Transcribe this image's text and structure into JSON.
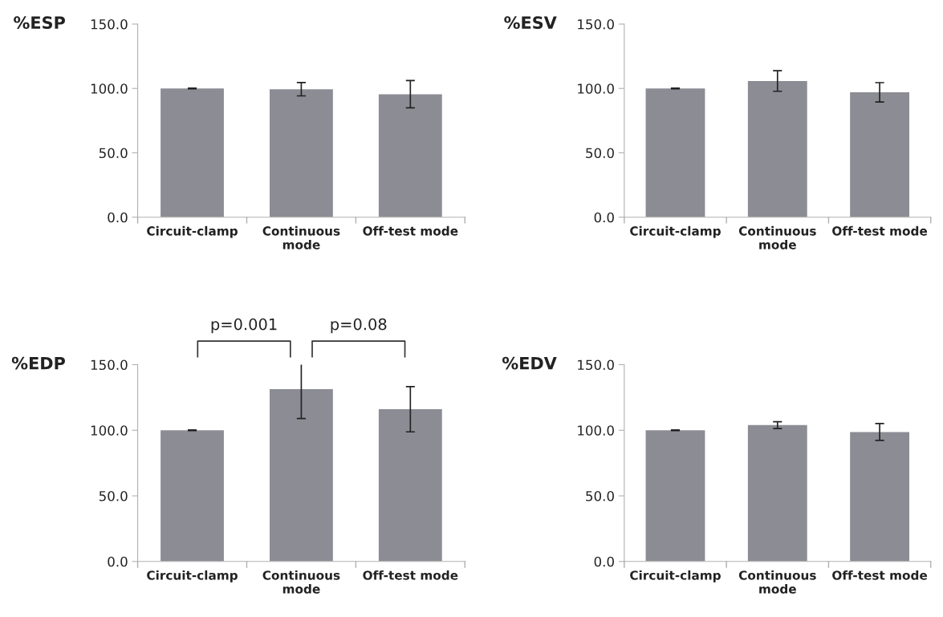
{
  "chart_data": [
    {
      "type": "bar",
      "ylabel": "%ESP",
      "categories": [
        "Circuit-clamp",
        "Continuous\nmode",
        "Off-test mode"
      ],
      "values": [
        100,
        99.4,
        95.5
      ],
      "errors": [
        0.3,
        5.2,
        10.6
      ],
      "color": "#8c8c94",
      "ylim": [
        0,
        150
      ],
      "yticks": [
        {
          "value": 0,
          "label": "0.0"
        },
        {
          "value": 50,
          "label": "50.0"
        },
        {
          "value": 100,
          "label": "100.0"
        },
        {
          "value": 150,
          "label": "150.0"
        }
      ],
      "grid": false,
      "legend": false
    },
    {
      "type": "bar",
      "ylabel": "%ESV",
      "categories": [
        "Circuit-clamp",
        "Continuous\nmode",
        "Off-test mode"
      ],
      "values": [
        100,
        105.8,
        97
      ],
      "errors": [
        0.3,
        8,
        7.5
      ],
      "color": "#8c8c94",
      "ylim": [
        0,
        150
      ],
      "yticks": [
        {
          "value": 0,
          "label": "0.0"
        },
        {
          "value": 50,
          "label": "50.0"
        },
        {
          "value": 100,
          "label": "100.0"
        },
        {
          "value": 150,
          "label": "150.0"
        }
      ],
      "grid": false,
      "legend": false
    },
    {
      "type": "bar",
      "ylabel": "%EDP",
      "categories": [
        "Circuit-clamp",
        "Continuous\nmode",
        "Off-test mode"
      ],
      "values": [
        100,
        131.3,
        116
      ],
      "errors": [
        0.3,
        22.4,
        17.2
      ],
      "color": "#8c8c94",
      "ylim": [
        0,
        150
      ],
      "yticks": [
        {
          "value": 0,
          "label": "0.0"
        },
        {
          "value": 50,
          "label": "50.0"
        },
        {
          "value": 100,
          "label": "100.0"
        },
        {
          "value": 150,
          "label": "150.0"
        }
      ],
      "grid": false,
      "legend": false,
      "annotations": [
        "p=0.001",
        "p=0.08"
      ]
    },
    {
      "type": "bar",
      "ylabel": "%EDV",
      "categories": [
        "Circuit-clamp",
        "Continuous\nmode",
        "Off-test mode"
      ],
      "values": [
        100,
        103.9,
        98.7
      ],
      "errors": [
        0.3,
        2.6,
        6.4
      ],
      "color": "#8c8c94",
      "ylim": [
        0,
        150
      ],
      "yticks": [
        {
          "value": 0,
          "label": "0.0"
        },
        {
          "value": 50,
          "label": "50.0"
        },
        {
          "value": 100,
          "label": "100.0"
        },
        {
          "value": 150,
          "label": "150.0"
        }
      ],
      "grid": false,
      "legend": false
    }
  ]
}
